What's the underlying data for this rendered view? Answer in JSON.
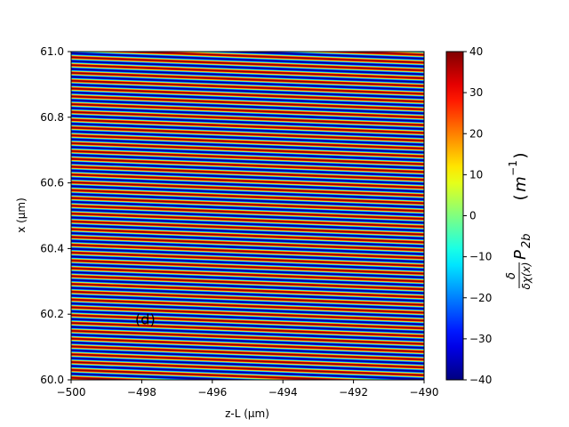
{
  "chart_data": {
    "type": "heatmap",
    "title": "",
    "xlabel": "z-L  (μm)",
    "ylabel": "x (μm)",
    "xlim": [
      -500,
      -490
    ],
    "ylim": [
      60.0,
      61.0
    ],
    "x_ticks": [
      -500,
      -498,
      -496,
      -494,
      -492,
      -490
    ],
    "x_tick_labels": [
      "−500",
      "−498",
      "−496",
      "−494",
      "−492",
      "−490"
    ],
    "y_ticks": [
      60.0,
      60.2,
      60.4,
      60.6,
      60.8,
      61.0
    ],
    "y_tick_labels": [
      "60.0",
      "60.2",
      "60.4",
      "60.6",
      "60.8",
      "61.0"
    ],
    "colorbar": {
      "label": "δ/δχ(x) P_2b   (m⁻¹)",
      "label_parts": {
        "numerator": "δ",
        "denominator": "δχ(x)",
        "symbol": "P",
        "subscript": "2b",
        "unit_base": "m",
        "unit_exp": "−1"
      },
      "range": [
        -40,
        40
      ],
      "ticks": [
        -40,
        -30,
        -20,
        -10,
        0,
        10,
        20,
        30,
        40
      ],
      "tick_labels": [
        "−40",
        "−30",
        "−20",
        "−10",
        "0",
        "10",
        "20",
        "30",
        "40"
      ],
      "colormap": "jet"
    },
    "field": {
      "pattern": "sinusoidal fringes tilted across z",
      "amplitude": 40,
      "fringes_per_um_x": 42,
      "drift_x_over_window_um": 0.04
    },
    "annotation": "(d)",
    "annotation_pos": {
      "x": -497.9,
      "y": 60.17
    }
  }
}
